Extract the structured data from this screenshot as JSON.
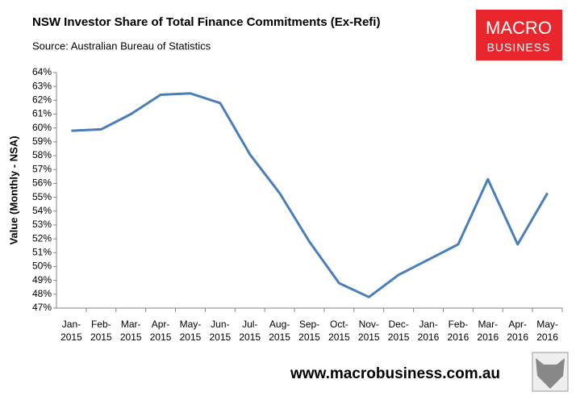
{
  "chart_data": {
    "type": "line",
    "title": "NSW Investor Share of Total Finance Commitments (Ex-Refi)",
    "subtitle": "Source: Australian Bureau of Statistics",
    "y_label": "Value (Monthly - NSA)",
    "logo": {
      "line1": "MACRO",
      "line2": "BUSINESS"
    },
    "footer": "www.macrobusiness.com.au",
    "categories": [
      "Jan-2015",
      "Feb-2015",
      "Mar-2015",
      "Apr-2015",
      "May-2015",
      "Jun-2015",
      "Jul-2015",
      "Aug-2015",
      "Sep-2015",
      "Oct-2015",
      "Nov-2015",
      "Dec-2015",
      "Jan-2016",
      "Feb-2016",
      "Mar-2016",
      "Apr-2016",
      "May-2016"
    ],
    "series": [
      {
        "name": "NSW Investor Share",
        "color": "#4a7ebb",
        "values": [
          59.8,
          59.9,
          61.0,
          62.4,
          62.5,
          61.8,
          58.1,
          55.3,
          51.8,
          48.8,
          47.8,
          49.4,
          50.5,
          51.6,
          56.3,
          51.6,
          55.3
        ]
      }
    ],
    "ylim": [
      47,
      64
    ],
    "yticks": [
      {
        "value": 47,
        "label": "47%"
      },
      {
        "value": 48,
        "label": "48%"
      },
      {
        "value": 49,
        "label": "49%"
      },
      {
        "value": 50,
        "label": "50%"
      },
      {
        "value": 51,
        "label": "51%"
      },
      {
        "value": 52,
        "label": "52%"
      },
      {
        "value": 53,
        "label": "53%"
      },
      {
        "value": 54,
        "label": "54%"
      },
      {
        "value": 55,
        "label": "55%"
      },
      {
        "value": 56,
        "label": "56%"
      },
      {
        "value": 57,
        "label": "57%"
      },
      {
        "value": 58,
        "label": "58%"
      },
      {
        "value": 59,
        "label": "59%"
      },
      {
        "value": 60,
        "label": "60%"
      },
      {
        "value": 61,
        "label": "61%"
      },
      {
        "value": 62,
        "label": "62%"
      },
      {
        "value": 63,
        "label": "63%"
      },
      {
        "value": 64,
        "label": "64%"
      }
    ],
    "grid": false
  }
}
